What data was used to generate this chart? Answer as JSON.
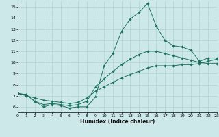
{
  "xlabel": "Humidex (Indice chaleur)",
  "xlim": [
    0,
    23
  ],
  "ylim": [
    5.5,
    15.5
  ],
  "xticks": [
    0,
    1,
    2,
    3,
    4,
    5,
    6,
    7,
    8,
    9,
    10,
    11,
    12,
    13,
    14,
    15,
    16,
    17,
    18,
    19,
    20,
    21,
    22,
    23
  ],
  "yticks": [
    6,
    7,
    8,
    9,
    10,
    11,
    12,
    13,
    14,
    15
  ],
  "bg_color": "#cde8e8",
  "grid_color": "#aacece",
  "line_color": "#1a7060",
  "line1_x": [
    0,
    1,
    2,
    3,
    4,
    5,
    6,
    7,
    8,
    9,
    10,
    11,
    12,
    13,
    14,
    15,
    16,
    17,
    18,
    19,
    20,
    21,
    22,
    23
  ],
  "line1_y": [
    7.2,
    7.1,
    6.5,
    6.0,
    6.2,
    6.1,
    5.9,
    6.0,
    6.0,
    6.9,
    9.7,
    10.8,
    12.8,
    13.9,
    14.5,
    15.3,
    13.3,
    12.0,
    11.5,
    11.4,
    11.1,
    10.1,
    10.4,
    10.4
  ],
  "line2_x": [
    0,
    1,
    2,
    3,
    4,
    5,
    6,
    7,
    8,
    9,
    10,
    11,
    12,
    13,
    14,
    15,
    16,
    17,
    18,
    19,
    20,
    21,
    22,
    23
  ],
  "line2_y": [
    7.2,
    7.1,
    6.5,
    6.2,
    6.3,
    6.2,
    6.1,
    6.2,
    6.5,
    7.8,
    8.5,
    9.2,
    9.8,
    10.3,
    10.7,
    11.0,
    11.0,
    10.8,
    10.6,
    10.4,
    10.2,
    10.0,
    9.9,
    9.9
  ],
  "line3_x": [
    0,
    1,
    2,
    3,
    4,
    5,
    6,
    7,
    8,
    9,
    10,
    11,
    12,
    13,
    14,
    15,
    16,
    17,
    18,
    19,
    20,
    21,
    22,
    23
  ],
  "line3_y": [
    7.2,
    7.0,
    6.8,
    6.6,
    6.5,
    6.4,
    6.3,
    6.4,
    6.8,
    7.4,
    7.8,
    8.2,
    8.6,
    8.9,
    9.2,
    9.5,
    9.7,
    9.7,
    9.7,
    9.8,
    9.8,
    9.9,
    10.1,
    10.3
  ]
}
